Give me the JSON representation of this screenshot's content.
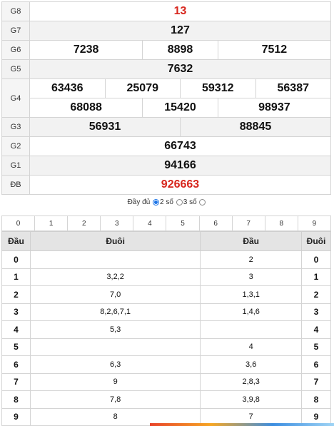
{
  "results": {
    "g8": {
      "label": "G8",
      "value": "13"
    },
    "g7": {
      "label": "G7",
      "value": "127"
    },
    "g6": {
      "label": "G6",
      "values": [
        "7238",
        "8898",
        "7512"
      ]
    },
    "g5": {
      "label": "G5",
      "value": "7632"
    },
    "g4": {
      "label": "G4",
      "row1": [
        "63436",
        "25079",
        "59312",
        "56387"
      ],
      "row2": [
        "68088",
        "15420",
        "98937"
      ]
    },
    "g3": {
      "label": "G3",
      "values": [
        "56931",
        "88845"
      ]
    },
    "g2": {
      "label": "G2",
      "value": "66743"
    },
    "g1": {
      "label": "G1",
      "value": "94166"
    },
    "db": {
      "label": "ĐB",
      "value": "926663"
    }
  },
  "options": {
    "full": "Đầy đủ",
    "two": "2 số",
    "three": "3 số",
    "selected": "two"
  },
  "digits": [
    "0",
    "1",
    "2",
    "3",
    "4",
    "5",
    "6",
    "7",
    "8",
    "9"
  ],
  "loto": {
    "headers": {
      "dau": "Đầu",
      "duoi": "Đuôi",
      "dau2": "Đầu",
      "duoi2": "Đuôi"
    },
    "rows": [
      {
        "k": "0",
        "tail": "",
        "head": "2",
        "k2": "0"
      },
      {
        "k": "1",
        "tail": "3,2,2",
        "head": "3",
        "k2": "1"
      },
      {
        "k": "2",
        "tail": "7,0",
        "head": "1,3,1",
        "k2": "2"
      },
      {
        "k": "3",
        "tail": "8,2,6,7,1",
        "head": "1,4,6",
        "k2": "3"
      },
      {
        "k": "4",
        "tail": "5,3",
        "head": "",
        "k2": "4"
      },
      {
        "k": "5",
        "tail": "",
        "head": "4",
        "k2": "5"
      },
      {
        "k": "6",
        "tail": "6,3",
        "head": "3,6",
        "k2": "6"
      },
      {
        "k": "7",
        "tail": "9",
        "head": "2,8,3",
        "k2": "7"
      },
      {
        "k": "8",
        "tail": "7,8",
        "head": "3,9,8",
        "k2": "8"
      },
      {
        "k": "9",
        "tail": "8",
        "head": "7",
        "k2": "9"
      }
    ]
  }
}
